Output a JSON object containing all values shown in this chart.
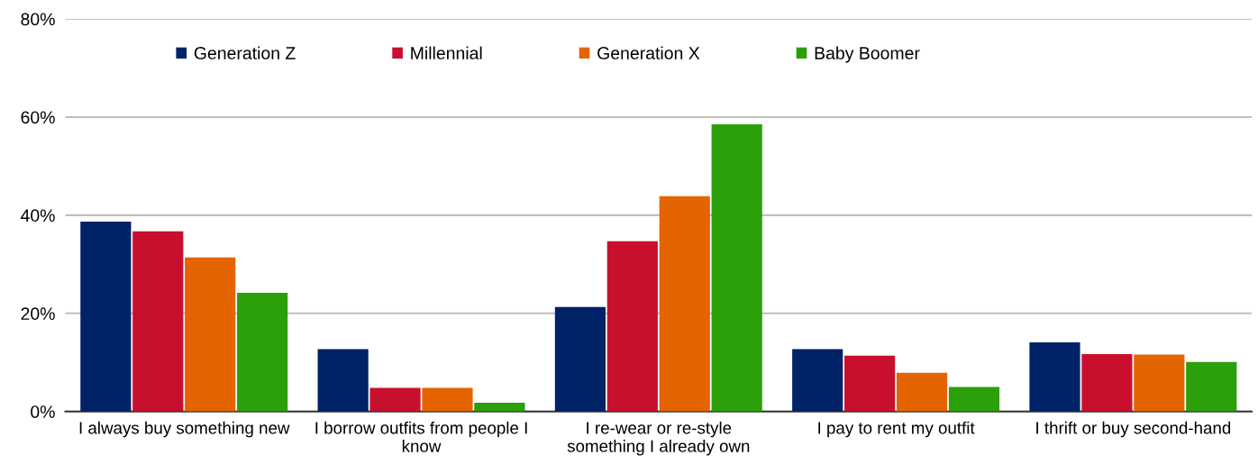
{
  "chart_data": {
    "type": "bar",
    "categories": [
      "I always buy something new",
      "I borrow outfits from people I\nknow",
      "I re-wear or re-style\nsomething I already own",
      "I pay to rent my outfit",
      "I thrift or buy second-hand"
    ],
    "series": [
      {
        "name": "Generation Z",
        "color": "#002266",
        "values": [
          38.7,
          12.7,
          21.3,
          12.7,
          14.1
        ]
      },
      {
        "name": "Millennial",
        "color": "#c8102e",
        "values": [
          36.7,
          4.8,
          34.7,
          11.4,
          11.7
        ]
      },
      {
        "name": "Generation X",
        "color": "#e46400",
        "values": [
          31.4,
          4.8,
          43.9,
          7.9,
          11.6
        ]
      },
      {
        "name": "Baby Boomer",
        "color": "#2ba00a",
        "values": [
          24.2,
          1.8,
          58.5,
          5.0,
          10.1
        ]
      }
    ],
    "ylim": [
      0,
      80
    ],
    "yticks": [
      {
        "value": 0,
        "label": "0%"
      },
      {
        "value": 20,
        "label": "20%"
      },
      {
        "value": 40,
        "label": "40%"
      },
      {
        "value": 60,
        "label": "60%"
      },
      {
        "value": 80,
        "label": "80%"
      }
    ],
    "grid": "y",
    "legend": "top left"
  }
}
